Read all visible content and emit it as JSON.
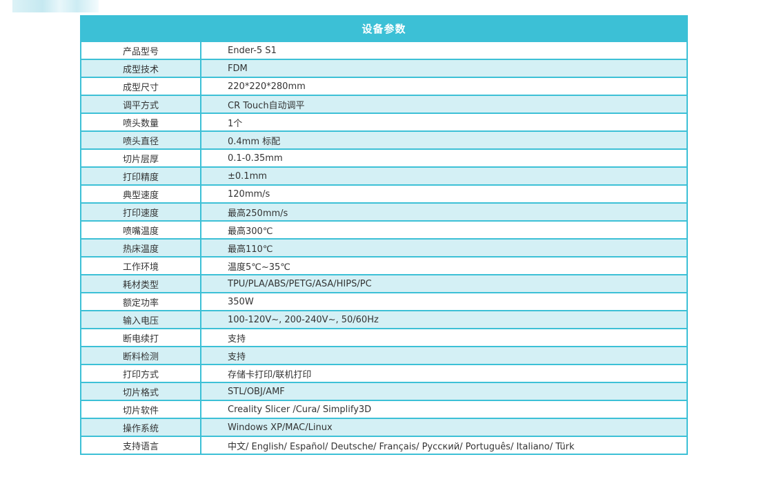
{
  "table": {
    "title": "设备参数",
    "rows": [
      {
        "label": "产品型号",
        "value": "Ender-5 S1"
      },
      {
        "label": "成型技术",
        "value": "FDM"
      },
      {
        "label": "成型尺寸",
        "value": "220*220*280mm"
      },
      {
        "label": "调平方式",
        "value": "CR Touch自动调平"
      },
      {
        "label": "喷头数量",
        "value": "1个"
      },
      {
        "label": "喷头直径",
        "value": "0.4mm 标配"
      },
      {
        "label": "切片层厚",
        "value": "0.1-0.35mm"
      },
      {
        "label": "打印精度",
        "value": "±0.1mm"
      },
      {
        "label": "典型速度",
        "value": "120mm/s"
      },
      {
        "label": "打印速度",
        "value": "最高250mm/s"
      },
      {
        "label": "喷嘴温度",
        "value": "最高300℃"
      },
      {
        "label": "热床温度",
        "value": "最高110℃"
      },
      {
        "label": "工作环境",
        "value": "温度5℃~35℃"
      },
      {
        "label": "耗材类型",
        "value": "TPU/PLA/ABS/PETG/ASA/HIPS/PC"
      },
      {
        "label": "额定功率",
        "value": "350W"
      },
      {
        "label": "输入电压",
        "value": "100-120V~, 200-240V~, 50/60Hz"
      },
      {
        "label": "断电续打",
        "value": "支持"
      },
      {
        "label": "断料检测",
        "value": "支持"
      },
      {
        "label": "打印方式",
        "value": "存储卡打印/联机打印"
      },
      {
        "label": "切片格式",
        "value": "STL/OBJ/AMF"
      },
      {
        "label": "切片软件",
        "value": "Creality Slicer /Cura/ Simplify3D"
      },
      {
        "label": "操作系统",
        "value": "Windows XP/MAC/Linux"
      },
      {
        "label": "支持语言",
        "value": "中文/ English/ Español/ Deutsche/ Français/ Русский/ Português/ Italiano/ Türk"
      }
    ]
  }
}
